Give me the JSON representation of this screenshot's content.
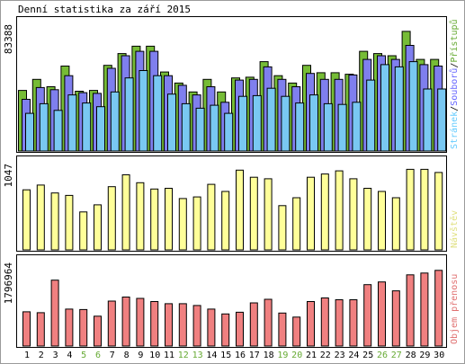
{
  "chart_data": {
    "type": "bar",
    "title": "Denní statistika za září 2015",
    "categories": [
      "1",
      "2",
      "3",
      "4",
      "5",
      "6",
      "7",
      "8",
      "9",
      "10",
      "11",
      "12",
      "13",
      "14",
      "15",
      "16",
      "17",
      "18",
      "19",
      "20",
      "21",
      "22",
      "23",
      "24",
      "25",
      "26",
      "27",
      "28",
      "29",
      "30"
    ],
    "weekend_days": [
      "5",
      "6",
      "12",
      "13",
      "19",
      "20",
      "26",
      "27"
    ],
    "panels": [
      {
        "name": "traffic",
        "max_label": "83388",
        "ymax": 83388,
        "legend": [
          "Stránek",
          "/",
          "Souborů",
          "/",
          "Přístupů"
        ],
        "legend_colors": [
          "#66ccff",
          "#000000",
          "#6666ff",
          "#000000",
          "#66aa33"
        ],
        "series": [
          {
            "name": "Přístupů",
            "color": "#76bc36",
            "values": [
              41000,
              48500,
              43500,
              57500,
              40500,
              41000,
              58000,
              66000,
              71000,
              71000,
              53500,
              46000,
              40000,
              48500,
              40000,
              49500,
              50000,
              60500,
              51000,
              46000,
              58000,
              53000,
              53000,
              52000,
              67500,
              66000,
              64500,
              81000,
              62000,
              62000
            ]
          },
          {
            "name": "Souborů",
            "color": "#7f7fee",
            "values": [
              35000,
              43000,
              41500,
              51000,
              39500,
              39000,
              56000,
              64500,
              67500,
              67500,
              51000,
              44500,
              38000,
              43500,
              33000,
              48000,
              48500,
              57000,
              48500,
              43500,
              52500,
              48500,
              48500,
              51500,
              62000,
              64500,
              62000,
              71500,
              58500,
              57500
            ]
          },
          {
            "name": "Stránek",
            "color": "#79c8f2",
            "values": [
              25500,
              32000,
              27500,
              38000,
              32500,
              30000,
              40000,
              49500,
              54500,
              51000,
              38500,
              32000,
              29000,
              31000,
              25500,
              37000,
              37500,
              42500,
              37000,
              32500,
              38000,
              32000,
              31500,
              33000,
              48000,
              58500,
              57000,
              60500,
              42000,
              42000
            ]
          }
        ]
      },
      {
        "name": "visitors",
        "max_label": "1047",
        "ymax": 1047,
        "legend": [
          "Návštěv"
        ],
        "legend_colors": [
          "#e0e080"
        ],
        "series": [
          {
            "name": "Návštěv",
            "color": "#ffff99",
            "values": [
              760,
              820,
              720,
              690,
              480,
              570,
              800,
              950,
              850,
              770,
              780,
              650,
              670,
              830,
              740,
              1010,
              920,
              900,
              560,
              660,
              920,
              960,
              1000,
              900,
              780,
              740,
              660,
              1020,
              1020,
              980
            ]
          }
        ]
      },
      {
        "name": "transfer",
        "max_label": "1796964",
        "ymax": 1796964,
        "legend": [
          "Objem přenosu"
        ],
        "legend_colors": [
          "#e07070"
        ],
        "series": [
          {
            "name": "Objem přenosu",
            "color": "#f08080",
            "values": [
              770000,
              750000,
              1480000,
              830000,
              820000,
              670000,
              1010000,
              1100000,
              1070000,
              1000000,
              950000,
              950000,
              910000,
              830000,
              720000,
              760000,
              970000,
              1050000,
              740000,
              650000,
              1000000,
              1080000,
              1040000,
              1040000,
              1380000,
              1440000,
              1240000,
              1600000,
              1640000,
              1700000
            ]
          }
        ]
      }
    ]
  }
}
